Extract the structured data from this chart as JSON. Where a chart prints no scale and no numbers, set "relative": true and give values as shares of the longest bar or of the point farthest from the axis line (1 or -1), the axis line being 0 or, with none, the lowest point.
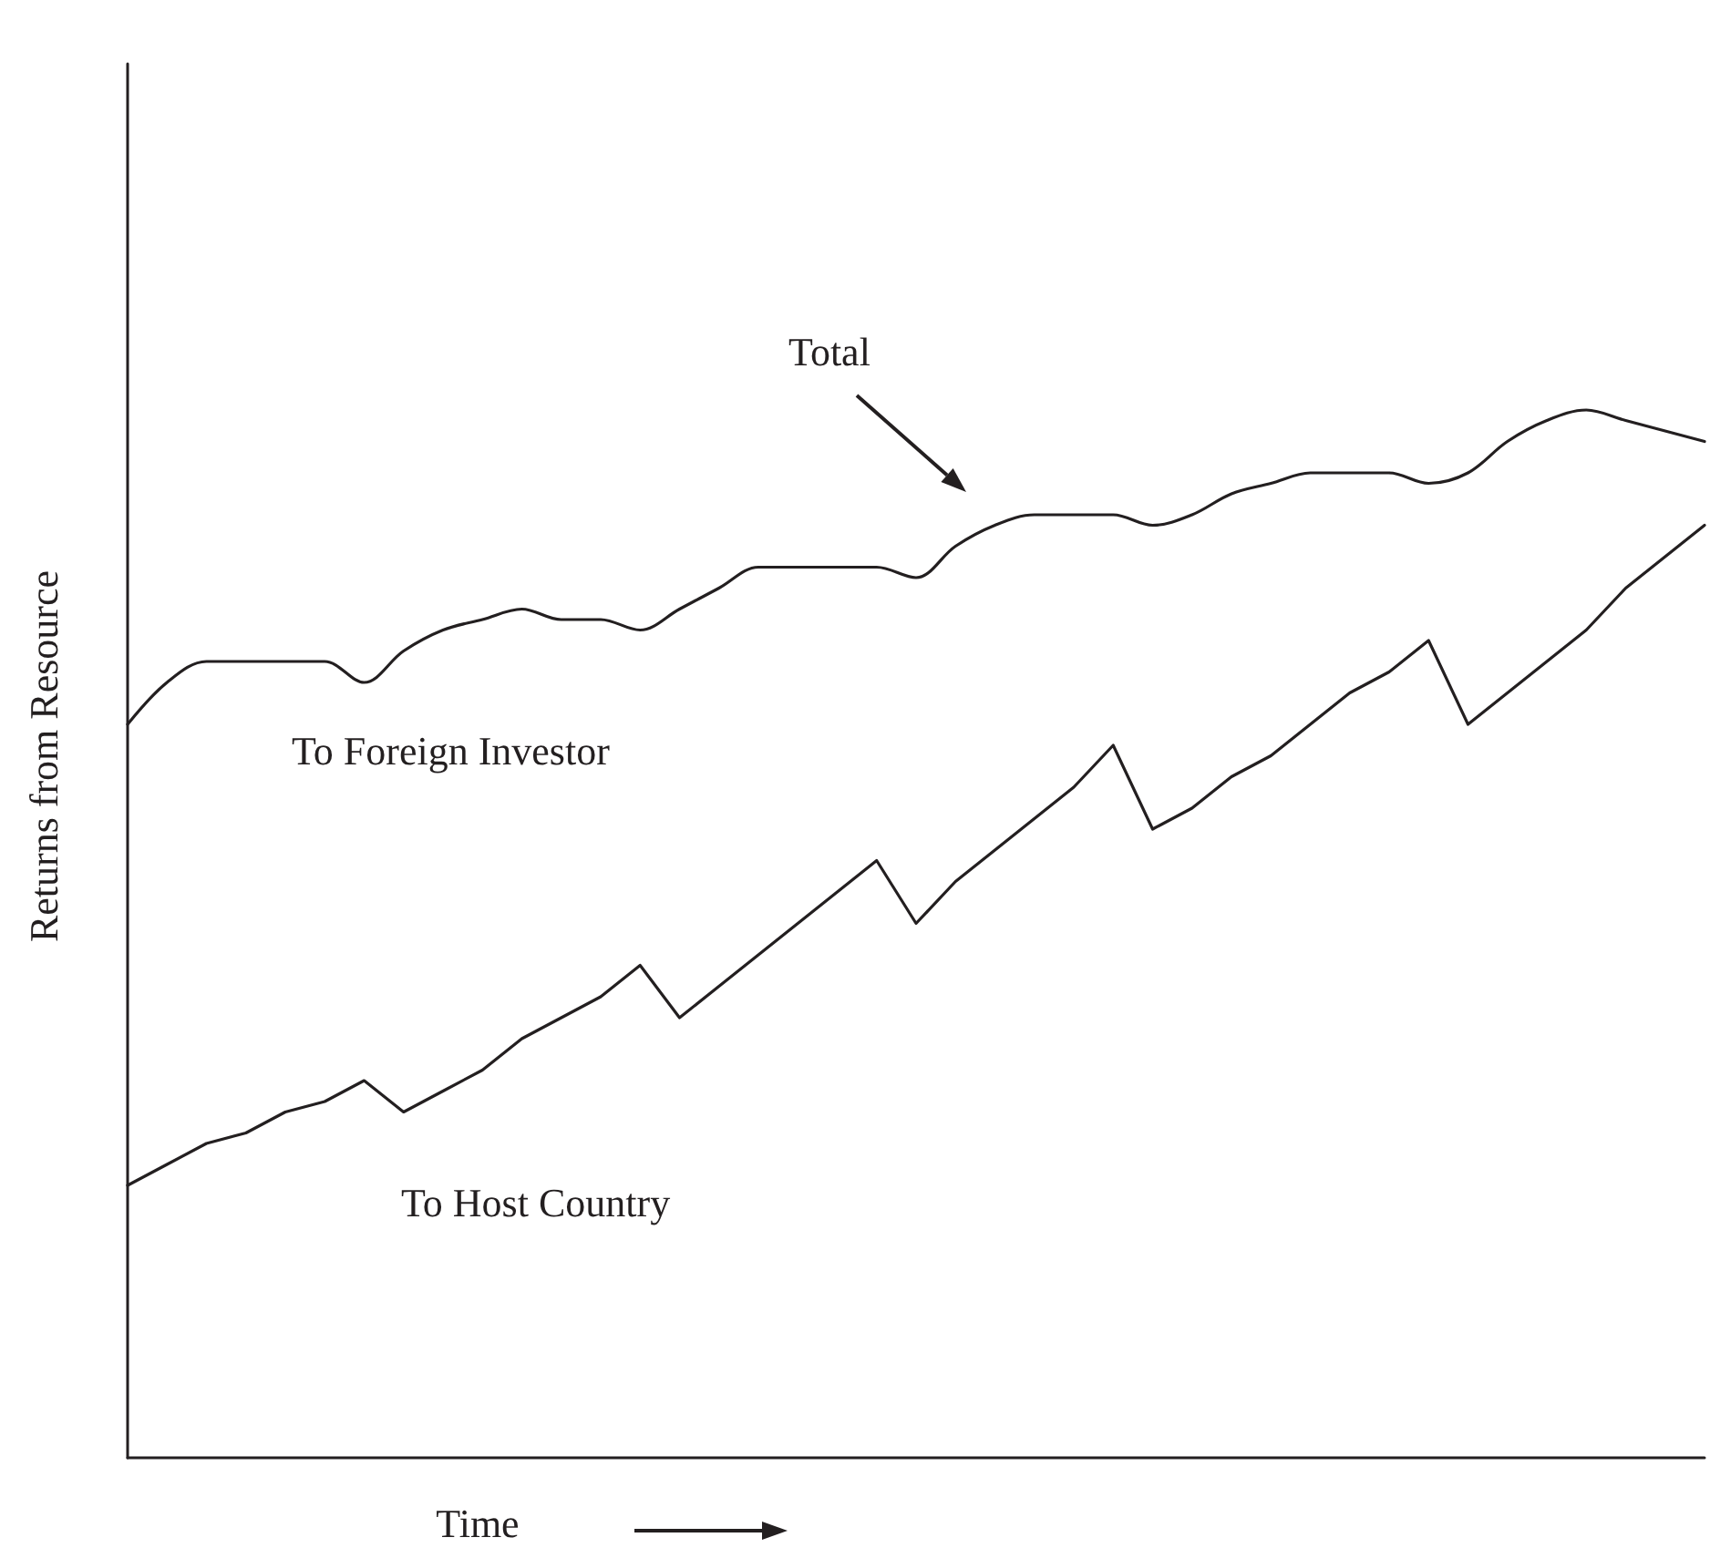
{
  "chart_data": {
    "type": "line",
    "relative": true,
    "xlabel": "Time",
    "ylabel": "Returns from Resource",
    "categories": [
      null,
      null,
      null,
      null,
      null,
      null,
      null,
      null,
      null,
      null,
      null,
      null,
      null,
      null,
      null,
      null,
      null,
      null,
      null,
      null,
      null,
      null,
      null,
      null,
      null,
      null,
      null,
      null,
      null,
      null,
      null,
      null,
      null,
      null,
      null,
      null,
      null,
      null,
      null,
      null,
      null
    ],
    "series": [
      {
        "color": "#231f20",
        "values": [
          0.7,
          0.74,
          0.76,
          0.76,
          0.76,
          0.76,
          0.74,
          0.77,
          0.79,
          0.8,
          0.81,
          0.8,
          0.8,
          0.79,
          0.81,
          0.83,
          0.85,
          0.85,
          0.85,
          0.85,
          0.84,
          0.87,
          0.89,
          0.9,
          0.9,
          0.9,
          0.89,
          0.9,
          0.92,
          0.93,
          0.94,
          0.94,
          0.94,
          0.93,
          0.94,
          0.97,
          0.99,
          1.0,
          0.99,
          0.98,
          0.97
        ]
      },
      {
        "color": "#231f20",
        "values": [
          0.26,
          0.28,
          0.3,
          0.31,
          0.33,
          0.34,
          0.36,
          0.33,
          0.35,
          0.37,
          0.4,
          0.42,
          0.44,
          0.47,
          0.42,
          0.45,
          0.48,
          0.51,
          0.54,
          0.57,
          0.51,
          0.55,
          0.58,
          0.61,
          0.64,
          0.68,
          0.6,
          0.62,
          0.65,
          0.67,
          0.7,
          0.73,
          0.75,
          0.78,
          0.7,
          0.73,
          0.76,
          0.79,
          0.83,
          0.86,
          0.89
        ]
      }
    ],
    "annotations": [
      "Total",
      "To Foreign Investor",
      "To Host Country"
    ],
    "grid": false,
    "marker": "none",
    "line_style": "solid"
  }
}
